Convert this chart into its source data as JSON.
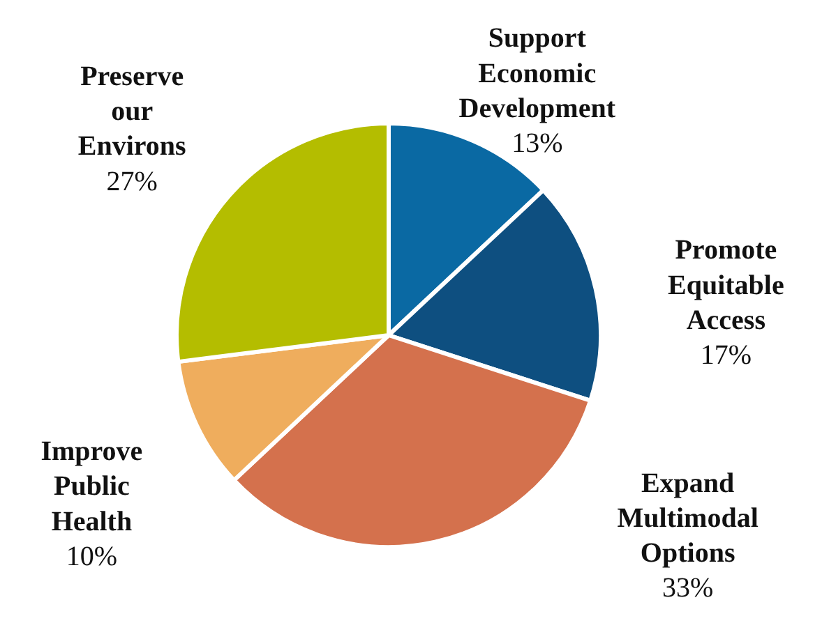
{
  "chart_data": {
    "type": "pie",
    "categories": [
      "Support Economic Development",
      "Promote Equitable Access",
      "Expand Multimodal Options",
      "Improve Public Health",
      "Preserve our Environs"
    ],
    "values": [
      13,
      17,
      33,
      10,
      27
    ],
    "colors": [
      "#0a69a3",
      "#0e4f80",
      "#d4714d",
      "#efad5d",
      "#b4bd00"
    ],
    "value_labels": [
      "13%",
      "17%",
      "33%",
      "10%",
      "27%"
    ]
  }
}
